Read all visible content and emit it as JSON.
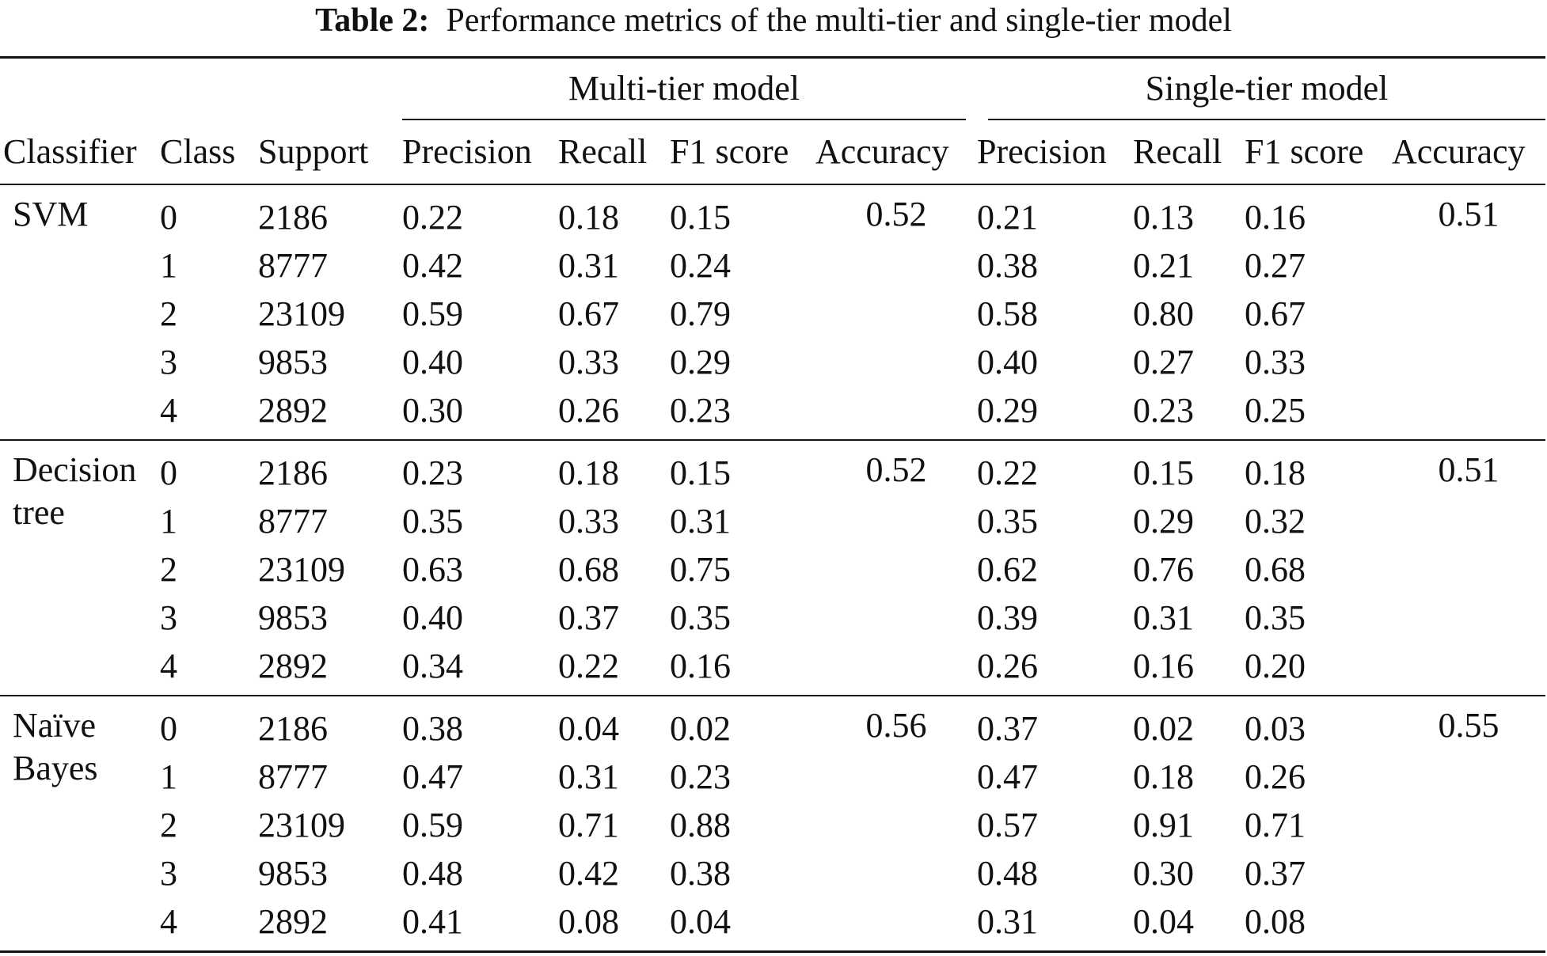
{
  "caption": {
    "label": "Table 2:",
    "text": "Performance metrics of the multi-tier and single-tier model"
  },
  "header": {
    "group_multi": "Multi-tier model",
    "group_single": "Single-tier model",
    "col_classifier": "Classifier",
    "col_class": "Class",
    "col_support": "Support",
    "multi_precision": "Precision",
    "multi_recall": "Recall",
    "multi_f1": "F1 score",
    "multi_accuracy": "Accuracy",
    "single_precision": "Precision",
    "single_recall": "Recall",
    "single_f1": "F1 score",
    "single_accuracy": "Accuracy"
  },
  "blocks": [
    {
      "classifier": "SVM",
      "multi_accuracy": "0.52",
      "single_accuracy": "0.51",
      "rows": [
        {
          "class": "0",
          "support": "2186",
          "mp": "0.22",
          "mr": "0.18",
          "mf": "0.15",
          "sp": "0.21",
          "sr": "0.13",
          "sf": "0.16"
        },
        {
          "class": "1",
          "support": "8777",
          "mp": "0.42",
          "mr": "0.31",
          "mf": "0.24",
          "sp": "0.38",
          "sr": "0.21",
          "sf": "0.27"
        },
        {
          "class": "2",
          "support": "23109",
          "mp": "0.59",
          "mr": "0.67",
          "mf": "0.79",
          "sp": "0.58",
          "sr": "0.80",
          "sf": "0.67"
        },
        {
          "class": "3",
          "support": "9853",
          "mp": "0.40",
          "mr": "0.33",
          "mf": "0.29",
          "sp": "0.40",
          "sr": "0.27",
          "sf": "0.33"
        },
        {
          "class": "4",
          "support": "2892",
          "mp": "0.30",
          "mr": "0.26",
          "mf": "0.23",
          "sp": "0.29",
          "sr": "0.23",
          "sf": "0.25"
        }
      ]
    },
    {
      "classifier": "Decision tree",
      "multi_accuracy": "0.52",
      "single_accuracy": "0.51",
      "rows": [
        {
          "class": "0",
          "support": "2186",
          "mp": "0.23",
          "mr": "0.18",
          "mf": "0.15",
          "sp": "0.22",
          "sr": "0.15",
          "sf": "0.18"
        },
        {
          "class": "1",
          "support": "8777",
          "mp": "0.35",
          "mr": "0.33",
          "mf": "0.31",
          "sp": "0.35",
          "sr": "0.29",
          "sf": "0.32"
        },
        {
          "class": "2",
          "support": "23109",
          "mp": "0.63",
          "mr": "0.68",
          "mf": "0.75",
          "sp": "0.62",
          "sr": "0.76",
          "sf": "0.68"
        },
        {
          "class": "3",
          "support": "9853",
          "mp": "0.40",
          "mr": "0.37",
          "mf": "0.35",
          "sp": "0.39",
          "sr": "0.31",
          "sf": "0.35"
        },
        {
          "class": "4",
          "support": "2892",
          "mp": "0.34",
          "mr": "0.22",
          "mf": "0.16",
          "sp": "0.26",
          "sr": "0.16",
          "sf": "0.20"
        }
      ]
    },
    {
      "classifier": "Naïve Bayes",
      "multi_accuracy": "0.56",
      "single_accuracy": "0.55",
      "rows": [
        {
          "class": "0",
          "support": "2186",
          "mp": "0.38",
          "mr": "0.04",
          "mf": "0.02",
          "sp": "0.37",
          "sr": "0.02",
          "sf": "0.03"
        },
        {
          "class": "1",
          "support": "8777",
          "mp": "0.47",
          "mr": "0.31",
          "mf": "0.23",
          "sp": "0.47",
          "sr": "0.18",
          "sf": "0.26"
        },
        {
          "class": "2",
          "support": "23109",
          "mp": "0.59",
          "mr": "0.71",
          "mf": "0.88",
          "sp": "0.57",
          "sr": "0.91",
          "sf": "0.71"
        },
        {
          "class": "3",
          "support": "9853",
          "mp": "0.48",
          "mr": "0.42",
          "mf": "0.38",
          "sp": "0.48",
          "sr": "0.30",
          "sf": "0.37"
        },
        {
          "class": "4",
          "support": "2892",
          "mp": "0.41",
          "mr": "0.08",
          "mf": "0.04",
          "sp": "0.31",
          "sr": "0.04",
          "sf": "0.08"
        }
      ]
    }
  ]
}
